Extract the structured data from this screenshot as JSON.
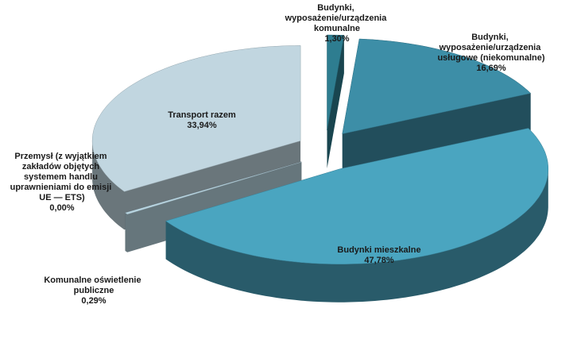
{
  "chart_data": {
    "type": "pie",
    "categories": [
      "Budynki, wyposażenie/urządzenia komunalne",
      "Budynki, wyposażenie/urządzenia usługowe (niekomunalne)",
      "Budynki mieszkalne",
      "Komunalne oświetlenie publiczne",
      "Przemysł (z wyjątkiem zakładów objętych systemem handlu uprawnieniami do emisji UE — ETS)",
      "Transport razem"
    ],
    "values": [
      1.3,
      16.69,
      47.78,
      0.29,
      0,
      33.94
    ],
    "value_labels": [
      "1,30%",
      "16,69%",
      "47,78%",
      "0,29%",
      "0,00%",
      "33,94%"
    ],
    "colors": [
      "#2e7d90",
      "#3d8ea7",
      "#4aa5c0",
      "#b9d6e2",
      "#6c7a83",
      "#c1d6e0"
    ]
  }
}
